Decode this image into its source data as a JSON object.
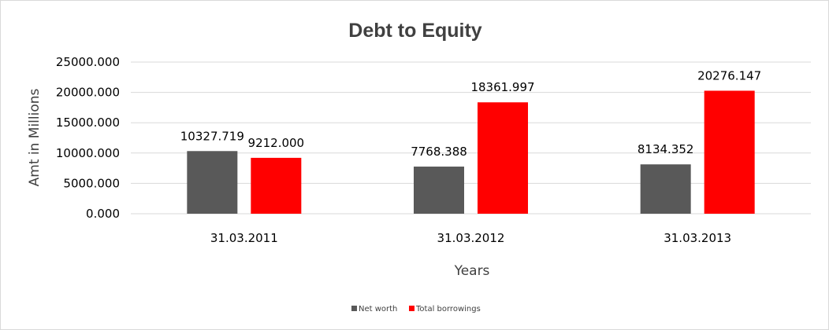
{
  "chart_data": {
    "type": "bar",
    "title": "Debt to Equity",
    "xlabel": "Years",
    "ylabel": "Amt in Millions",
    "categories": [
      "31.03.2011",
      "31.03.2012",
      "31.03.2013"
    ],
    "series": [
      {
        "name": "Net worth",
        "color": "#595959",
        "values": [
          10327.719,
          7768.388,
          8134.352
        ],
        "labels": [
          "10327.719",
          "7768.388",
          "8134.352"
        ]
      },
      {
        "name": "Total borrowings",
        "color": "#ff0000",
        "values": [
          9212.0,
          18361.997,
          20276.147
        ],
        "labels": [
          "9212.000",
          "18361.997",
          "20276.147"
        ]
      }
    ],
    "ylim": [
      0,
      25000
    ],
    "yticks": [
      0,
      5000,
      10000,
      15000,
      20000,
      25000
    ],
    "ytick_labels": [
      "0.000",
      "5000.000",
      "10000.000",
      "15000.000",
      "20000.000",
      "25000.000"
    ],
    "grid": true,
    "gridline_color": "#d9d9d9",
    "legend_position": "bottom"
  }
}
